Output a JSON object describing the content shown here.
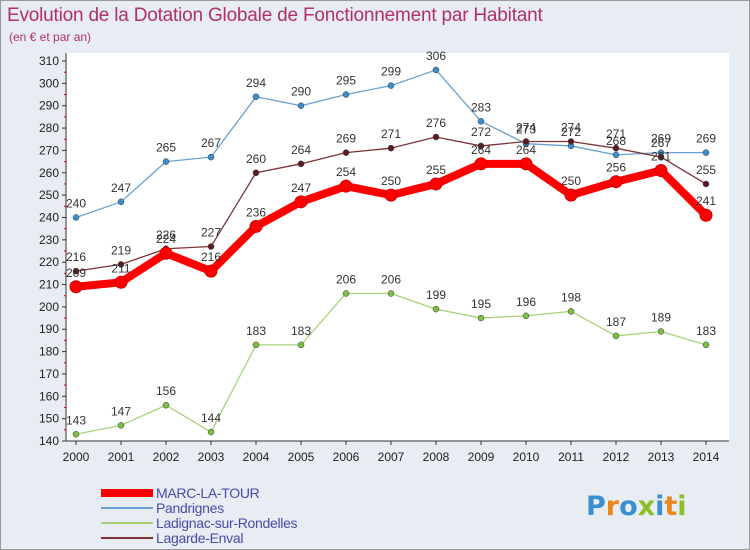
{
  "header": {
    "title": "Evolution de la Dotation Globale de Fonctionnement par Habitant",
    "subtitle": "(en € et par an)"
  },
  "logo": {
    "text": "Proxiti",
    "colors": [
      "#3a8fd0",
      "#e8871e",
      "#3a8fd0",
      "#8bbf2a",
      "#3a8fd0",
      "#e8871e",
      "#8bbf2a"
    ]
  },
  "chart_data": {
    "type": "line",
    "title": "Evolution de la Dotation Globale de Fonctionnement par Habitant",
    "subtitle": "(en € et par an)",
    "x": [
      "2000",
      "2001",
      "2002",
      "2003",
      "2004",
      "2005",
      "2006",
      "2007",
      "2008",
      "2009",
      "2010",
      "2011",
      "2012",
      "2013",
      "2014"
    ],
    "ylim": [
      140,
      310
    ],
    "yticks": [
      140,
      150,
      160,
      170,
      180,
      190,
      200,
      210,
      220,
      230,
      240,
      250,
      260,
      270,
      280,
      290,
      300,
      310
    ],
    "grid": false,
    "legend_position": "bottom-left",
    "series": [
      {
        "name": "Pandrignes",
        "color": "#6aa0d0",
        "marker": "#3d8fcc",
        "values": [
          240,
          247,
          265,
          267,
          294,
          290,
          295,
          299,
          306,
          283,
          273,
          272,
          268,
          269,
          269
        ]
      },
      {
        "name": "Ladignac-sur-Rondelles",
        "color": "#a6d37a",
        "marker": "#7cc043",
        "values": [
          143,
          147,
          156,
          144,
          183,
          183,
          206,
          206,
          199,
          195,
          196,
          198,
          187,
          189,
          183
        ]
      },
      {
        "name": "Lagarde-Enval",
        "color": "#7d3434",
        "marker": "#5a1c1c",
        "values": [
          216,
          219,
          226,
          227,
          260,
          264,
          269,
          271,
          276,
          272,
          274,
          274,
          271,
          267,
          255
        ]
      },
      {
        "name": "MARC-LA-TOUR",
        "color": "#ff0000",
        "marker": "#ff0000",
        "values": [
          209,
          211,
          224,
          216,
          236,
          247,
          254,
          250,
          255,
          264,
          264,
          250,
          256,
          261,
          241
        ]
      }
    ]
  }
}
